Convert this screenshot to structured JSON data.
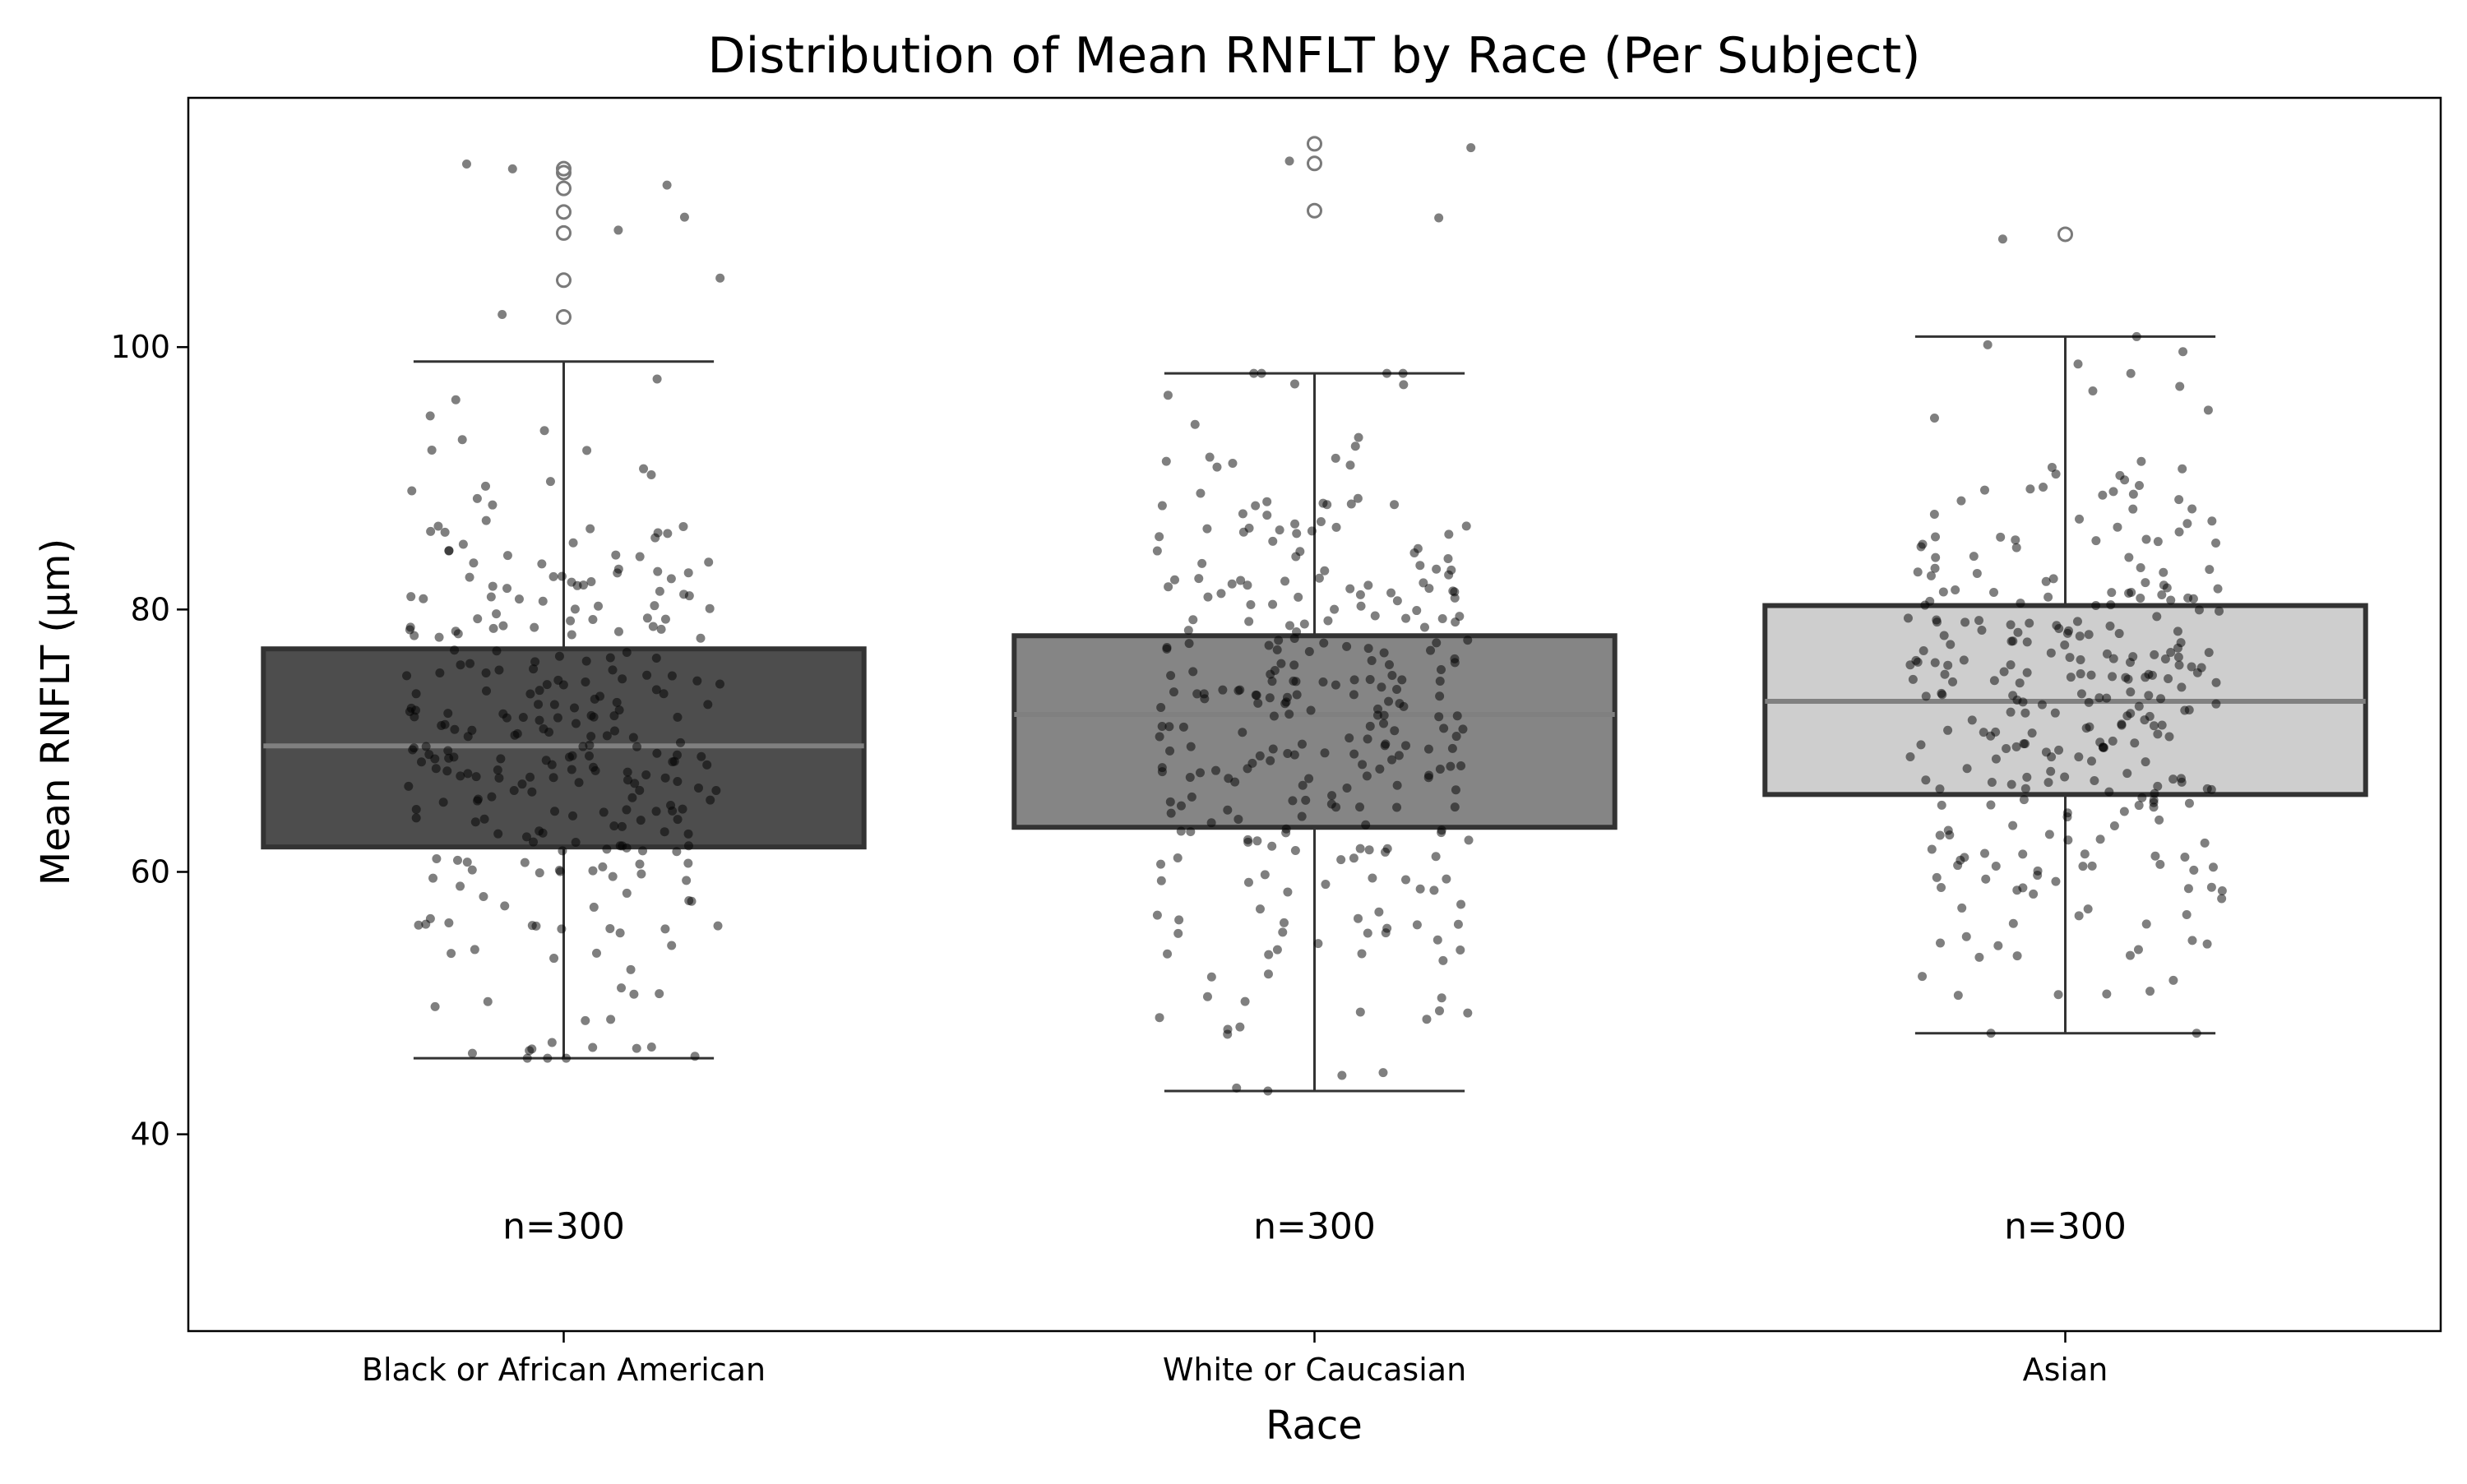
{
  "chart_data": {
    "type": "box",
    "title": "Distribution of Mean RNFLT by Race (Per Subject)",
    "xlabel": "Race",
    "ylabel": "Mean RNFLT (µm)",
    "ylim": [
      25,
      119
    ],
    "yticks": [
      40,
      60,
      80,
      100
    ],
    "grid": false,
    "legend": "none",
    "categories": [
      "Black or African American",
      "White or Caucasian",
      "Asian"
    ],
    "annotations": [
      "n=300",
      "n=300",
      "n=300"
    ],
    "annotation_y": 33,
    "box_colors": [
      "#4d4d4d",
      "#858585",
      "#cecece"
    ],
    "box_edge_color": "#333333",
    "median_color": "#808080",
    "boxes": [
      {
        "name": "Black or African American",
        "whisker_low": 45.8,
        "q1": 61.9,
        "median": 69.6,
        "q3": 77.0,
        "whisker_high": 98.9,
        "outliers": [
          102.3,
          105.1,
          108.7,
          110.3,
          112.1,
          113.3,
          113.6
        ]
      },
      {
        "name": "White or Caucasian",
        "whisker_low": 43.3,
        "q1": 63.4,
        "median": 72.0,
        "q3": 78.0,
        "whisker_high": 98.0,
        "outliers": [
          110.4,
          114.0,
          115.5
        ]
      },
      {
        "name": "Asian",
        "whisker_low": 47.7,
        "q1": 65.9,
        "median": 73.0,
        "q3": 80.3,
        "whisker_high": 100.8,
        "outliers": [
          108.6
        ]
      }
    ],
    "points": {
      "count_per_category": 300,
      "color": "#000000",
      "opacity": 0.5
    }
  }
}
